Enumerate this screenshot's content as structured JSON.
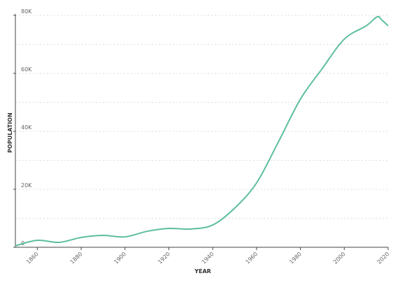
{
  "chart_data": {
    "type": "line",
    "x_label": "YEAR",
    "y_label": "POPULATION",
    "x": [
      1850,
      1860,
      1870,
      1880,
      1890,
      1900,
      1910,
      1920,
      1930,
      1940,
      1950,
      1960,
      1970,
      1980,
      1990,
      2000,
      2010,
      2015,
      2017,
      2020
    ],
    "series": [
      {
        "name": "Population",
        "color": "#5dbf9b",
        "values": [
          500,
          2400,
          1700,
          3400,
          4100,
          3600,
          5500,
          6500,
          6300,
          7700,
          13500,
          22200,
          36400,
          51100,
          61700,
          71800,
          76400,
          79500,
          78500,
          76400
        ]
      }
    ],
    "xlim": [
      1850,
      2020
    ],
    "xticks": [
      1860,
      1880,
      1900,
      1920,
      1940,
      1960,
      1980,
      2000,
      2020
    ],
    "ylim": [
      0,
      80000
    ],
    "yticks": [
      {
        "value": 0,
        "label": "0"
      },
      {
        "value": 20000,
        "label": "20K"
      },
      {
        "value": 40000,
        "label": "40K"
      },
      {
        "value": 60000,
        "label": "60K"
      },
      {
        "value": 80000,
        "label": "80K"
      }
    ],
    "minor_yticks": [
      10000,
      30000,
      50000,
      70000
    ],
    "grid": true
  }
}
